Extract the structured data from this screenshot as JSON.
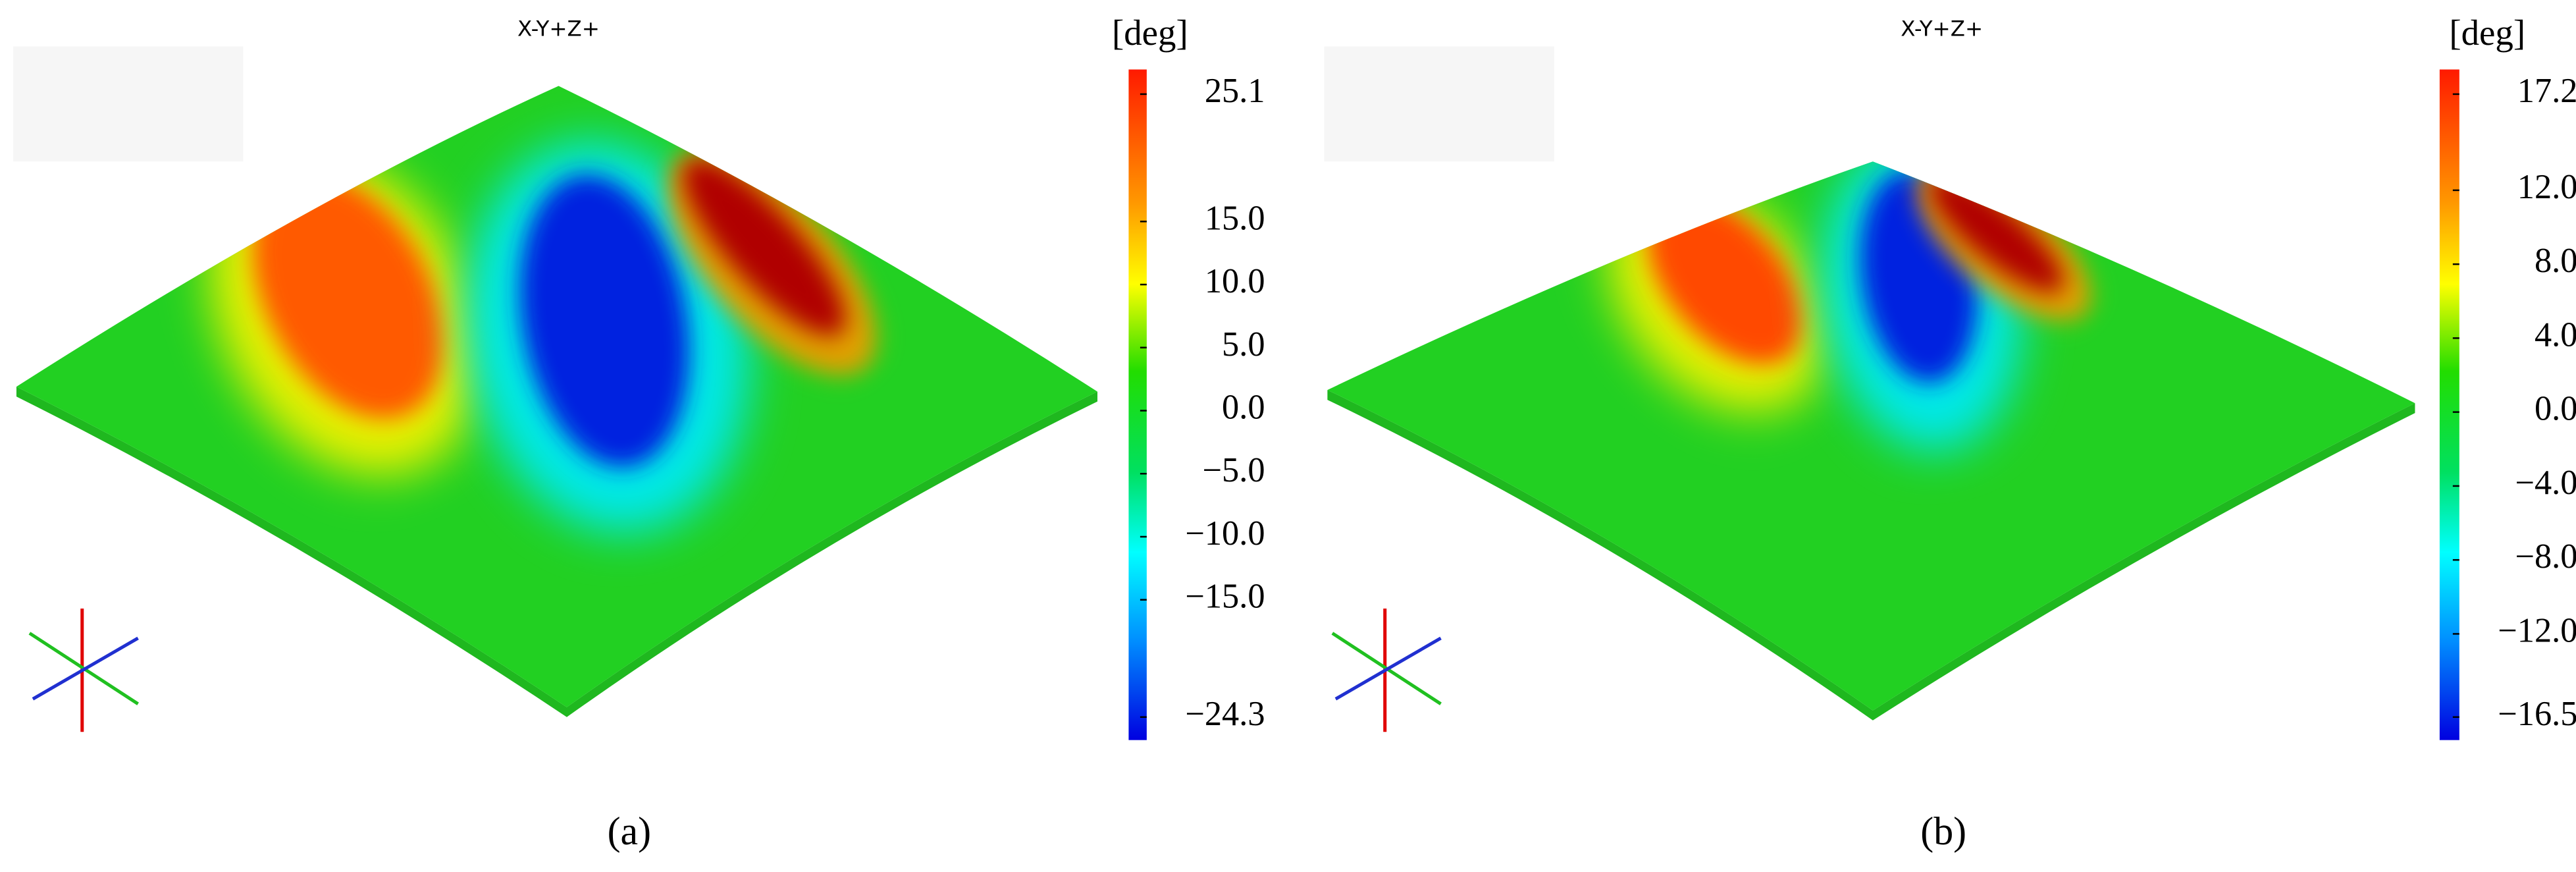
{
  "panels": [
    {
      "view_label": "X-Y+Z+",
      "unit": "[deg]",
      "caption": "(a)",
      "colorbar_ticks": [
        {
          "value": 25.1,
          "label": "25.1"
        },
        {
          "value": 15,
          "label": "15.0"
        },
        {
          "value": 10,
          "label": "10.0"
        },
        {
          "value": 5,
          "label": "5.0"
        },
        {
          "value": 0,
          "label": "0.0"
        },
        {
          "value": -5,
          "label": "−5.0"
        },
        {
          "value": -10,
          "label": "−10.0"
        },
        {
          "value": -15,
          "label": "−15.0"
        },
        {
          "value": -24.3,
          "label": "−24.3"
        }
      ]
    },
    {
      "view_label": "X-Y+Z+",
      "unit": "[deg]",
      "caption": "(b)",
      "colorbar_ticks": [
        {
          "value": 17.2,
          "label": "17.2"
        },
        {
          "value": 12,
          "label": "12.0"
        },
        {
          "value": 8,
          "label": "8.0"
        },
        {
          "value": 4,
          "label": "4.0"
        },
        {
          "value": 0,
          "label": "0.0"
        },
        {
          "value": -4,
          "label": "−4.0"
        },
        {
          "value": -8,
          "label": "−8.0"
        },
        {
          "value": -12,
          "label": "−12.0"
        },
        {
          "value": -16.5,
          "label": "−16.5"
        }
      ]
    }
  ]
}
